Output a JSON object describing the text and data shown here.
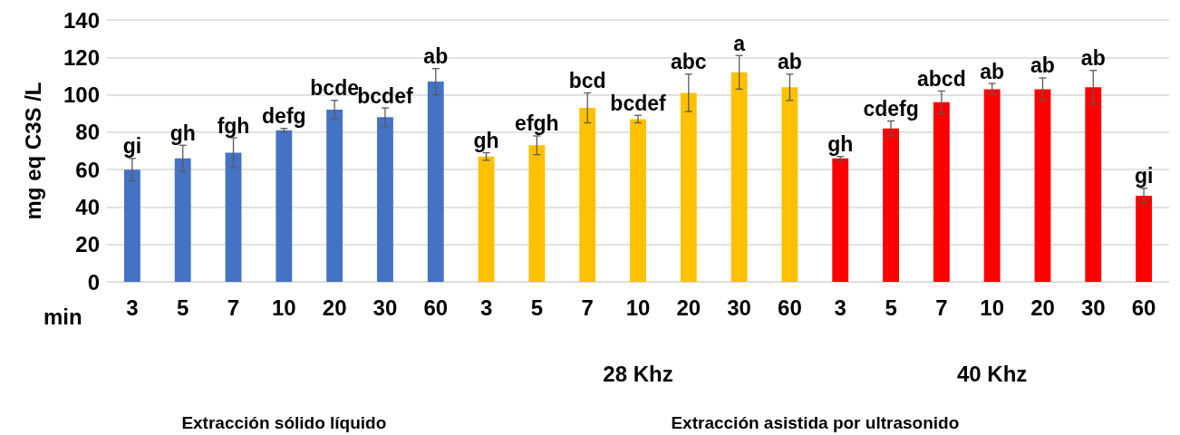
{
  "chart_data": {
    "type": "bar",
    "ylabel": "mg eq C3S /L",
    "xlabel": "min",
    "categories": [
      "3",
      "5",
      "7",
      "10",
      "20",
      "30",
      "60",
      "3",
      "5",
      "7",
      "10",
      "20",
      "30",
      "60",
      "3",
      "5",
      "7",
      "10",
      "20",
      "30",
      "60"
    ],
    "series": [
      {
        "color": "#4472c4",
        "values": [
          60,
          66,
          69,
          81,
          92,
          88,
          107,
          null,
          null,
          null,
          null,
          null,
          null,
          null,
          null,
          null,
          null,
          null,
          null,
          null,
          null
        ],
        "errors": [
          6,
          7,
          8,
          1,
          5,
          5,
          7,
          null,
          null,
          null,
          null,
          null,
          null,
          null,
          null,
          null,
          null,
          null,
          null,
          null,
          null
        ],
        "value_labels": [
          "gi",
          "gh",
          "fgh",
          "defg",
          "bcde",
          "bcdef",
          "ab",
          null,
          null,
          null,
          null,
          null,
          null,
          null,
          null,
          null,
          null,
          null,
          null,
          null,
          null
        ]
      },
      {
        "color": "#ffc000",
        "values": [
          null,
          null,
          null,
          null,
          null,
          null,
          null,
          67,
          73,
          93,
          87,
          101,
          112,
          104,
          null,
          null,
          null,
          null,
          null,
          null,
          null
        ],
        "errors": [
          null,
          null,
          null,
          null,
          null,
          null,
          null,
          2,
          5,
          8,
          2,
          10,
          9,
          7,
          null,
          null,
          null,
          null,
          null,
          null,
          null
        ],
        "value_labels": [
          null,
          null,
          null,
          null,
          null,
          null,
          null,
          "gh",
          "efgh",
          "bcd",
          "bcdef",
          "abc",
          "a",
          "ab",
          null,
          null,
          null,
          null,
          null,
          null,
          null
        ]
      },
      {
        "color": "#ff0000",
        "values": [
          null,
          null,
          null,
          null,
          null,
          null,
          null,
          null,
          null,
          null,
          null,
          null,
          null,
          null,
          66,
          82,
          96,
          103,
          103,
          104,
          46
        ],
        "errors": [
          null,
          null,
          null,
          null,
          null,
          null,
          null,
          null,
          null,
          null,
          null,
          null,
          null,
          null,
          1,
          4,
          6,
          3,
          6,
          9,
          4
        ],
        "value_labels": [
          null,
          null,
          null,
          null,
          null,
          null,
          null,
          null,
          null,
          null,
          null,
          null,
          null,
          null,
          "gh",
          "cdefg",
          "abcd",
          "ab",
          "ab",
          "ab",
          "gi"
        ]
      }
    ],
    "ylim": [
      0,
      140
    ],
    "yticks": [
      0,
      20,
      40,
      60,
      80,
      100,
      120,
      140
    ],
    "grid": "y",
    "annotations": [
      "28 Khz",
      "40 Khz",
      "Extracción sólido líquido",
      "Extracción asistida por ultrasonido"
    ]
  }
}
